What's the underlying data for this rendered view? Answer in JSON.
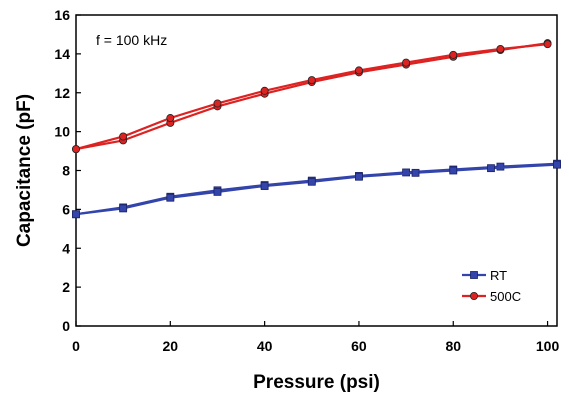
{
  "chart_data": {
    "type": "line",
    "annotation": "f = 100 kHz",
    "xlabel": "Pressure (psi)",
    "ylabel": "Capacitance (pF)",
    "xlim": [
      0,
      102
    ],
    "ylim": [
      0,
      16
    ],
    "x_ticks": [
      0,
      20,
      40,
      60,
      80,
      100
    ],
    "y_ticks": [
      0,
      2,
      4,
      6,
      8,
      10,
      12,
      14,
      16
    ],
    "x_tick_labels": [
      "0",
      "20",
      "40",
      "60",
      "80",
      "100"
    ],
    "y_tick_labels": [
      "0",
      "2",
      "4",
      "6",
      "8",
      "10",
      "12",
      "14",
      "16"
    ],
    "grid": false,
    "legend_position": "bottom-right",
    "series": [
      {
        "name": "RT",
        "color": "#3344aa",
        "marker": "square",
        "curves": [
          {
            "x": [
              0,
              10,
              20,
              30,
              40,
              50,
              60,
              70,
              80,
              90,
              102
            ],
            "y": [
              5.75,
              6.1,
              6.65,
              6.98,
              7.25,
              7.48,
              7.72,
              7.9,
              8.05,
              8.2,
              8.35
            ]
          },
          {
            "x": [
              0,
              10,
              20,
              30,
              40,
              50,
              60,
              72,
              80,
              88,
              102
            ],
            "y": [
              5.75,
              6.05,
              6.6,
              6.9,
              7.2,
              7.42,
              7.68,
              7.88,
              8.0,
              8.12,
              8.3
            ]
          }
        ]
      },
      {
        "name": "500C",
        "color": "#dd2222",
        "marker": "circle",
        "curves": [
          {
            "x": [
              0,
              10,
              20,
              30,
              40,
              50,
              60,
              70,
              80,
              90,
              100
            ],
            "y": [
              9.1,
              9.55,
              10.45,
              11.3,
              11.95,
              12.55,
              13.05,
              13.45,
              13.85,
              14.2,
              14.55
            ]
          },
          {
            "x": [
              0,
              10,
              20,
              30,
              40,
              50,
              60,
              70,
              80,
              90,
              100
            ],
            "y": [
              9.1,
              9.75,
              10.7,
              11.45,
              12.1,
              12.65,
              13.15,
              13.55,
              13.95,
              14.25,
              14.5
            ]
          }
        ]
      }
    ]
  }
}
